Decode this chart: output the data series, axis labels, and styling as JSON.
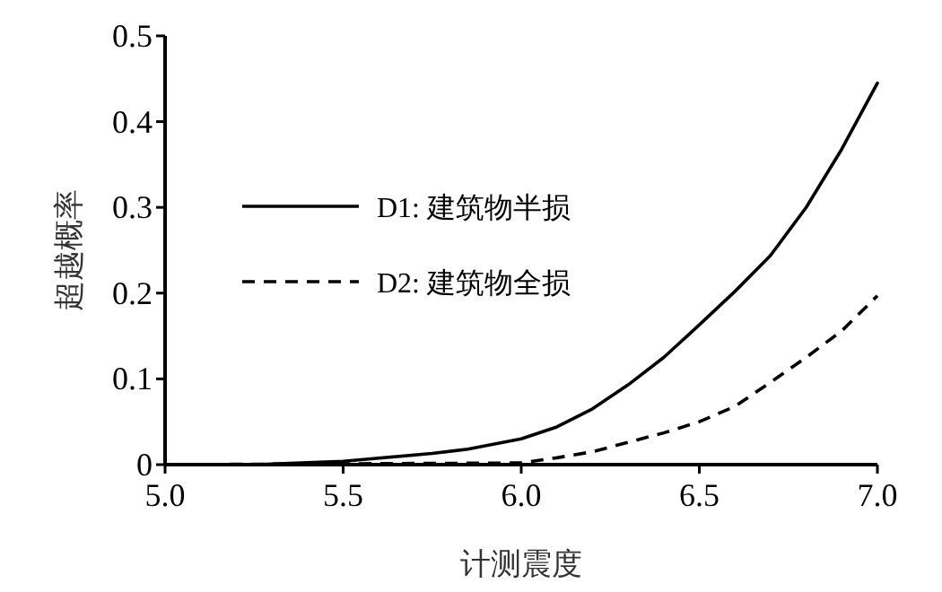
{
  "chart_data": {
    "type": "line",
    "xlabel": "计测震度",
    "ylabel": "超越概率",
    "xlim": [
      5.0,
      7.0
    ],
    "xticks": [
      {
        "value": 5.0,
        "label": "5.0"
      },
      {
        "value": 5.5,
        "label": "5.5"
      },
      {
        "value": 6.0,
        "label": "6.0"
      },
      {
        "value": 6.5,
        "label": "6.5"
      },
      {
        "value": 7.0,
        "label": "7.0"
      }
    ],
    "ylim": [
      0,
      0.5
    ],
    "yticks": [
      0,
      0.1,
      0.2,
      0.3,
      0.4,
      0.5
    ],
    "grid": false,
    "legend": "top left",
    "marker": "none",
    "series": [
      {
        "name": "D1: 建筑物半损",
        "color": "#000000",
        "line_style": "solid",
        "x": [
          5.0,
          5.25,
          5.5,
          5.75,
          5.85,
          6.0,
          6.1,
          6.2,
          6.3,
          6.4,
          6.5,
          6.6,
          6.7,
          6.8,
          6.9,
          7.0
        ],
        "values": [
          0,
          0,
          0.004,
          0.013,
          0.018,
          0.03,
          0.044,
          0.065,
          0.093,
          0.125,
          0.163,
          0.202,
          0.244,
          0.3,
          0.368,
          0.445
        ]
      },
      {
        "name": "D2: 建筑物全损",
        "color": "#000000",
        "line_style": "dashed",
        "x": [
          5.0,
          5.5,
          6.0,
          6.1,
          6.2,
          6.3,
          6.4,
          6.5,
          6.6,
          6.7,
          6.8,
          6.9,
          7.0
        ],
        "values": [
          0,
          0.001,
          0.002,
          0.008,
          0.015,
          0.026,
          0.037,
          0.05,
          0.068,
          0.096,
          0.125,
          0.156,
          0.197
        ]
      }
    ]
  }
}
